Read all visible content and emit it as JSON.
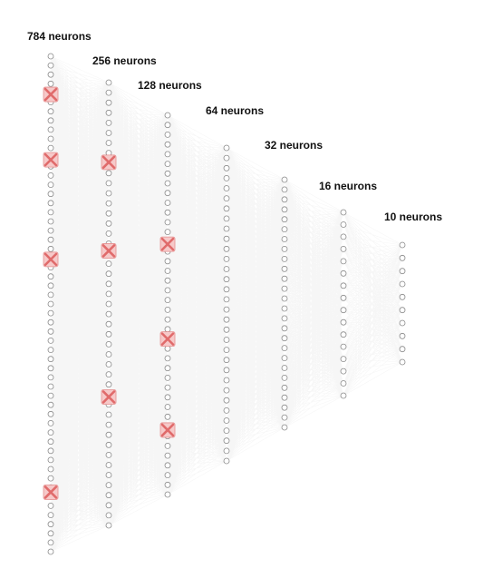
{
  "layers": [
    {
      "label": "784 neurons",
      "units": 784,
      "visible_nodes": 55,
      "dropout_marks": 4
    },
    {
      "label": "256 neurons",
      "units": 256,
      "visible_nodes": 45,
      "dropout_marks": 3
    },
    {
      "label": "128 neurons",
      "units": 128,
      "visible_nodes": 40,
      "dropout_marks": 3
    },
    {
      "label": "64 neurons",
      "units": 64,
      "visible_nodes": 32,
      "dropout_marks": 0
    },
    {
      "label": "32 neurons",
      "units": 32,
      "visible_nodes": 26,
      "dropout_marks": 0
    },
    {
      "label": "16 neurons",
      "units": 16,
      "visible_nodes": 16,
      "dropout_marks": 0
    },
    {
      "label": "10 neurons",
      "units": 10,
      "visible_nodes": 10,
      "dropout_marks": 0
    }
  ],
  "colors": {
    "edge": "#4a4a4a",
    "node_fill": "#ffffff",
    "node_stroke": "#8a8a8a",
    "dropout_fill": "#f6c9c9",
    "dropout_stroke": "#e06b6b",
    "label": "#111111"
  },
  "dropout_icon": "cross-icon"
}
